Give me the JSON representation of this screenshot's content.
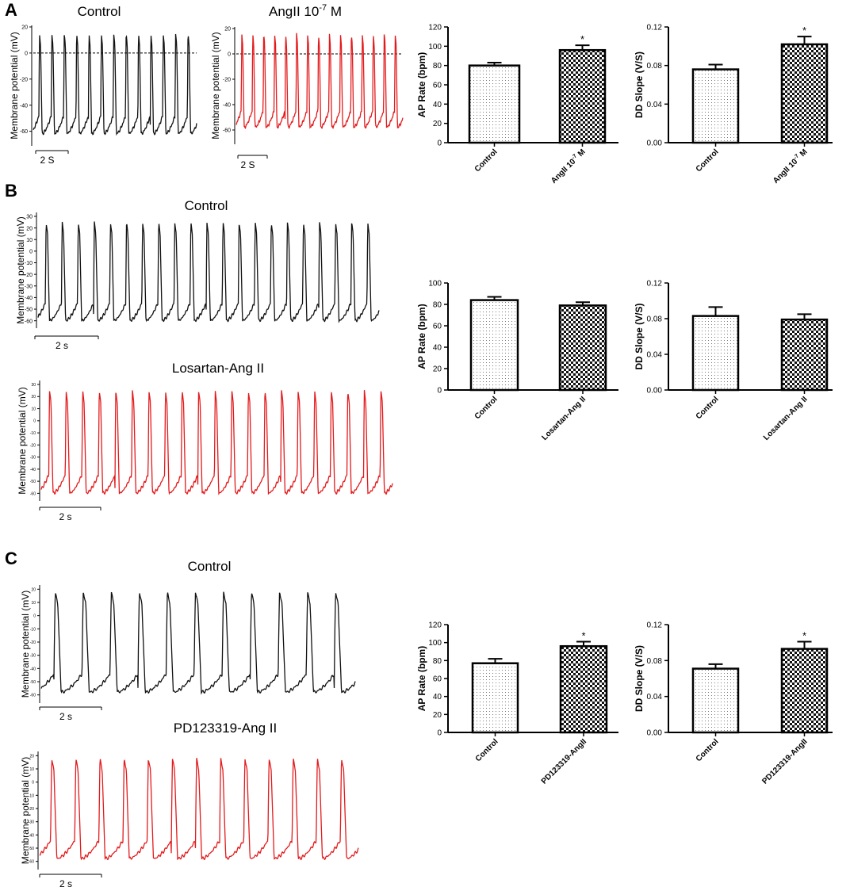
{
  "figure": {
    "panels": [
      {
        "letter": "A"
      },
      {
        "letter": "B"
      },
      {
        "letter": "C"
      }
    ]
  },
  "colors": {
    "control_trace": "#111111",
    "treatment_trace": "#e31a1c",
    "bar_stroke": "#000000"
  },
  "chart_data": [
    {
      "id": "A-trace-control",
      "type": "line",
      "panel": "A",
      "title": "Control",
      "ylabel": "Membrane potential (mV)",
      "ylim": [
        -70,
        20
      ],
      "yticks": [
        "20",
        "0",
        "-20",
        "-40",
        "-60"
      ],
      "zero_line": true,
      "scale_bar": "2 S",
      "beats": 13,
      "peak_mv": 15,
      "trough_mv": -62,
      "color": "#111111"
    },
    {
      "id": "A-trace-angii",
      "type": "line",
      "panel": "A",
      "title_main": "AngII 10",
      "title_sup": "-7",
      "title_tail": " M",
      "ylabel": "Membrane potential (mV)",
      "ylim": [
        -70,
        20
      ],
      "yticks": [
        "20",
        "0",
        "-20",
        "-40",
        "-60"
      ],
      "zero_line": true,
      "scale_bar": "2 S",
      "beats": 15,
      "peak_mv": 16,
      "trough_mv": -58,
      "color": "#e31a1c"
    },
    {
      "id": "A-bar-rate",
      "type": "bar",
      "panel": "A",
      "ylabel": "AP Rate (bpm)",
      "ylim": [
        0,
        120
      ],
      "yticks": [
        "0",
        "20",
        "40",
        "60",
        "80",
        "100",
        "120"
      ],
      "categories": [
        "Control",
        "AngII 10-7 M"
      ],
      "category_main": [
        "Control",
        "AngII 10"
      ],
      "category_sup": [
        "",
        "-7"
      ],
      "category_tail": [
        "",
        " M"
      ],
      "values": [
        80,
        96
      ],
      "errors": [
        3,
        5
      ],
      "significance": [
        "",
        "*"
      ]
    },
    {
      "id": "A-bar-slope",
      "type": "bar",
      "panel": "A",
      "ylabel": "DD Slope (V/S)",
      "ylim": [
        0,
        0.12
      ],
      "yticks": [
        "0.00",
        "0.04",
        "0.08",
        "0.12"
      ],
      "categories": [
        "Control",
        "AngII 10-7 M"
      ],
      "category_main": [
        "Control",
        "AngII 10"
      ],
      "category_sup": [
        "",
        "-7"
      ],
      "category_tail": [
        "",
        " M"
      ],
      "values": [
        0.076,
        0.102
      ],
      "errors": [
        0.005,
        0.008
      ],
      "significance": [
        "",
        "*"
      ]
    },
    {
      "id": "B-trace-control",
      "type": "line",
      "panel": "B",
      "title": "Control",
      "ylabel": "Membrane potential (mV)",
      "ylim": [
        -65,
        32
      ],
      "yticks": [
        "30",
        "20",
        "10",
        "0",
        "-10",
        "-20",
        "-30",
        "-40",
        "-50",
        "-60"
      ],
      "scale_bar": "2 s",
      "beats": 21,
      "peak_mv": 25,
      "trough_mv": -60,
      "color": "#111111"
    },
    {
      "id": "B-trace-losartan",
      "type": "line",
      "panel": "B",
      "title": "Losartan-Ang II",
      "ylabel": "Membrane potential (mV)",
      "ylim": [
        -65,
        32
      ],
      "yticks": [
        "30",
        "20",
        "10",
        "0",
        "-10",
        "-20",
        "-30",
        "-40",
        "-50",
        "-60"
      ],
      "scale_bar": "2 s",
      "beats": 21,
      "peak_mv": 25,
      "trough_mv": -60,
      "color": "#e31a1c"
    },
    {
      "id": "B-bar-rate",
      "type": "bar",
      "panel": "B",
      "ylabel": "AP Rate (bpm)",
      "ylim": [
        0,
        100
      ],
      "yticks": [
        "0",
        "20",
        "40",
        "60",
        "80",
        "100"
      ],
      "categories": [
        "Control",
        "Losartan-Ang II"
      ],
      "values": [
        84,
        79
      ],
      "errors": [
        3,
        3
      ],
      "significance": [
        "",
        ""
      ]
    },
    {
      "id": "B-bar-slope",
      "type": "bar",
      "panel": "B",
      "ylabel": "DD Slope (V/S)",
      "ylim": [
        0,
        0.12
      ],
      "yticks": [
        "0.00",
        "0.04",
        "0.08",
        "0.12"
      ],
      "categories": [
        "Control",
        "Losartan-Ang II"
      ],
      "values": [
        0.083,
        0.079
      ],
      "errors": [
        0.01,
        0.006
      ],
      "significance": [
        "",
        ""
      ]
    },
    {
      "id": "C-trace-control",
      "type": "line",
      "panel": "C",
      "title": "Control",
      "ylabel": "Membrane potential (mV)",
      "ylim": [
        -65,
        22
      ],
      "yticks": [
        "20",
        "10",
        "0",
        "-10",
        "-20",
        "-30",
        "-40",
        "-50",
        "-60"
      ],
      "scale_bar": "2 s",
      "beats": 11,
      "peak_mv": 18,
      "trough_mv": -58,
      "color": "#111111"
    },
    {
      "id": "C-trace-pd",
      "type": "line",
      "panel": "C",
      "title": "PD123319-Ang II",
      "ylabel": "Membrane potential (mV)",
      "ylim": [
        -65,
        22
      ],
      "yticks": [
        "20",
        "10",
        "0",
        "-10",
        "-20",
        "-30",
        "-40",
        "-50",
        "-60"
      ],
      "scale_bar": "2 s",
      "beats": 13,
      "peak_mv": 18,
      "trough_mv": -58,
      "color": "#e31a1c"
    },
    {
      "id": "C-bar-rate",
      "type": "bar",
      "panel": "C",
      "ylabel": "AP Rate (bpm)",
      "ylim": [
        0,
        120
      ],
      "yticks": [
        "0",
        "20",
        "40",
        "60",
        "80",
        "100",
        "120"
      ],
      "categories": [
        "Control",
        "PD123319-AngII"
      ],
      "values": [
        77,
        96
      ],
      "errors": [
        5,
        5
      ],
      "significance": [
        "",
        "*"
      ]
    },
    {
      "id": "C-bar-slope",
      "type": "bar",
      "panel": "C",
      "ylabel": "DD Slope (V/S)",
      "ylim": [
        0,
        0.12
      ],
      "yticks": [
        "0.00",
        "0.04",
        "0.08",
        "0.12"
      ],
      "categories": [
        "Control",
        "PD123319-AngII"
      ],
      "values": [
        0.071,
        0.093
      ],
      "errors": [
        0.005,
        0.008
      ],
      "significance": [
        "",
        "*"
      ]
    }
  ]
}
